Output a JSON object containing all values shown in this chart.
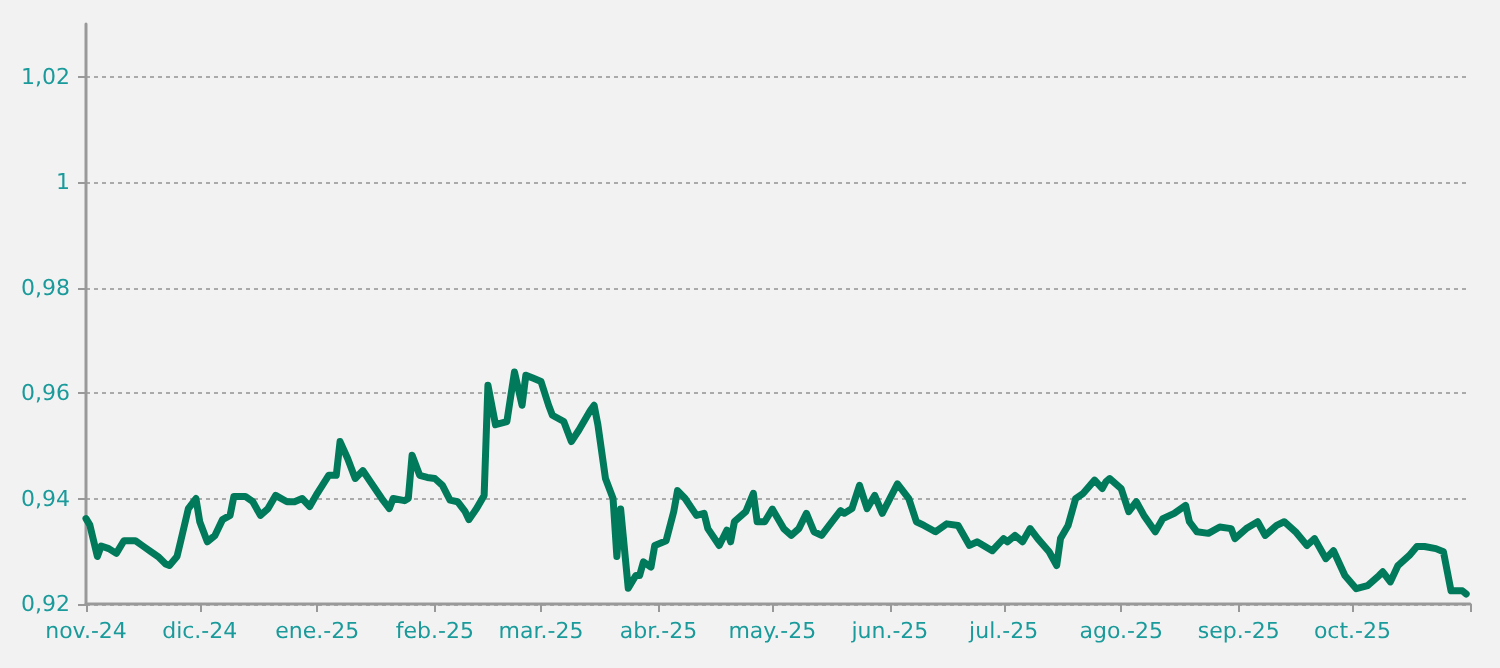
{
  "chart_data": {
    "type": "line",
    "x": [
      "2024-11-01",
      "2024-11-02",
      "2024-11-04",
      "2024-11-05",
      "2024-11-07",
      "2024-11-09",
      "2024-11-11",
      "2024-11-14",
      "2024-11-16",
      "2024-11-18",
      "2024-11-20",
      "2024-11-22",
      "2024-11-23",
      "2024-11-25",
      "2024-11-26",
      "2024-11-28",
      "2024-11-30",
      "2024-12-01",
      "2024-12-03",
      "2024-12-05",
      "2024-12-07",
      "2024-12-09",
      "2024-12-10",
      "2024-12-13",
      "2024-12-15",
      "2024-12-17",
      "2024-12-19",
      "2024-12-21",
      "2024-12-24",
      "2024-12-26",
      "2024-12-28",
      "2024-12-30",
      "2025-01-01",
      "2025-01-04",
      "2025-01-06",
      "2025-01-07",
      "2025-01-09",
      "2025-01-11",
      "2025-01-13",
      "2025-01-15",
      "2025-01-18",
      "2025-01-20",
      "2025-01-21",
      "2025-01-24",
      "2025-01-25",
      "2025-01-26",
      "2025-01-28",
      "2025-01-30",
      "2025-02-01",
      "2025-02-03",
      "2025-02-05",
      "2025-02-07",
      "2025-02-09",
      "2025-02-10",
      "2025-02-12",
      "2025-02-14",
      "2025-02-15",
      "2025-02-17",
      "2025-02-20",
      "2025-02-22",
      "2025-02-24",
      "2025-02-25",
      "2025-02-27",
      "2025-03-01",
      "2025-03-03",
      "2025-03-04",
      "2025-03-07",
      "2025-03-09",
      "2025-03-11",
      "2025-03-14",
      "2025-03-15",
      "2025-03-16",
      "2025-03-18",
      "2025-03-20",
      "2025-03-21",
      "2025-03-22",
      "2025-03-24",
      "2025-03-26",
      "2025-03-27",
      "2025-03-28",
      "2025-03-30",
      "2025-03-31",
      "2025-04-03",
      "2025-04-05",
      "2025-04-06",
      "2025-04-08",
      "2025-04-11",
      "2025-04-13",
      "2025-04-14",
      "2025-04-17",
      "2025-04-19",
      "2025-04-20",
      "2025-04-21",
      "2025-04-24",
      "2025-04-26",
      "2025-04-27",
      "2025-04-29",
      "2025-05-01",
      "2025-05-04",
      "2025-05-06",
      "2025-05-08",
      "2025-05-10",
      "2025-05-12",
      "2025-05-14",
      "2025-05-16",
      "2025-05-19",
      "2025-05-20",
      "2025-05-22",
      "2025-05-24",
      "2025-05-26",
      "2025-05-28",
      "2025-05-30",
      "2025-06-01",
      "2025-06-03",
      "2025-06-06",
      "2025-06-08",
      "2025-06-10",
      "2025-06-13",
      "2025-06-16",
      "2025-06-19",
      "2025-06-22",
      "2025-06-24",
      "2025-06-28",
      "2025-07-01",
      "2025-07-02",
      "2025-07-04",
      "2025-07-06",
      "2025-07-08",
      "2025-07-10",
      "2025-07-13",
      "2025-07-15",
      "2025-07-16",
      "2025-07-18",
      "2025-07-20",
      "2025-07-22",
      "2025-07-25",
      "2025-07-27",
      "2025-07-28",
      "2025-07-29",
      "2025-08-01",
      "2025-08-03",
      "2025-08-05",
      "2025-08-07",
      "2025-08-10",
      "2025-08-12",
      "2025-08-15",
      "2025-08-18",
      "2025-08-19",
      "2025-08-21",
      "2025-08-24",
      "2025-08-27",
      "2025-08-30",
      "2025-08-31",
      "2025-09-03",
      "2025-09-06",
      "2025-09-08",
      "2025-09-11",
      "2025-09-13",
      "2025-09-16",
      "2025-09-19",
      "2025-09-21",
      "2025-09-24",
      "2025-09-26",
      "2025-09-29",
      "2025-10-02",
      "2025-10-05",
      "2025-10-08",
      "2025-10-09",
      "2025-10-11",
      "2025-10-13",
      "2025-10-16",
      "2025-10-18",
      "2025-10-20",
      "2025-10-23",
      "2025-10-25",
      "2025-10-27",
      "2025-10-30",
      "2025-10-31"
    ],
    "series": [
      {
        "color": "#007a5a",
        "values": [
          0.9362,
          0.935,
          0.929,
          0.931,
          0.9305,
          0.9296,
          0.932,
          0.932,
          0.931,
          0.93,
          0.929,
          0.9276,
          0.9273,
          0.929,
          0.932,
          0.9381,
          0.94,
          0.9356,
          0.9318,
          0.933,
          0.936,
          0.9368,
          0.9404,
          0.9404,
          0.9394,
          0.9368,
          0.9381,
          0.9406,
          0.9394,
          0.9394,
          0.94,
          0.9385,
          0.941,
          0.9444,
          0.9444,
          0.9508,
          0.9476,
          0.9438,
          0.9453,
          0.9432,
          0.94,
          0.9381,
          0.94,
          0.9396,
          0.94,
          0.9482,
          0.9444,
          0.944,
          0.9438,
          0.9425,
          0.9397,
          0.9394,
          0.9375,
          0.936,
          0.9381,
          0.9406,
          0.9615,
          0.954,
          0.9546,
          0.964,
          0.9577,
          0.9634,
          0.9628,
          0.9622,
          0.9577,
          0.9558,
          0.9546,
          0.9508,
          0.953,
          0.9567,
          0.9577,
          0.954,
          0.9438,
          0.94,
          0.929,
          0.938,
          0.923,
          0.9254,
          0.9254,
          0.928,
          0.927,
          0.9311,
          0.932,
          0.9375,
          0.9415,
          0.94,
          0.9368,
          0.9372,
          0.9343,
          0.9311,
          0.934,
          0.9318,
          0.9356,
          0.9375,
          0.941,
          0.9356,
          0.9356,
          0.938,
          0.9343,
          0.933,
          0.9343,
          0.9372,
          0.9337,
          0.933,
          0.9349,
          0.9377,
          0.9372,
          0.9381,
          0.9425,
          0.9381,
          0.9406,
          0.9372,
          0.94,
          0.9428,
          0.94,
          0.9356,
          0.9349,
          0.9337,
          0.9352,
          0.9349,
          0.9311,
          0.9318,
          0.9301,
          0.9324,
          0.9318,
          0.933,
          0.9318,
          0.9343,
          0.9324,
          0.9299,
          0.9273,
          0.9324,
          0.9349,
          0.94,
          0.941,
          0.9435,
          0.9419,
          0.9432,
          0.9438,
          0.9419,
          0.9375,
          0.9394,
          0.9368,
          0.9337,
          0.9362,
          0.9372,
          0.9387,
          0.9356,
          0.9337,
          0.9334,
          0.9346,
          0.9343,
          0.9324,
          0.9343,
          0.9356,
          0.933,
          0.9349,
          0.9356,
          0.9337,
          0.9311,
          0.9324,
          0.9286,
          0.9301,
          0.9254,
          0.9229,
          0.9235,
          0.9254,
          0.9261,
          0.9242,
          0.9273,
          0.9292,
          0.9309,
          0.9309,
          0.9305,
          0.9299,
          0.9225,
          0.9225,
          0.9219
        ]
      }
    ],
    "xlim": [
      "2024-11-01",
      "2025-11-01"
    ],
    "xticks": [
      {
        "value": "2024-11-01",
        "label": "nov.-24"
      },
      {
        "value": "2024-12-01",
        "label": "dic.-24"
      },
      {
        "value": "2025-01-01",
        "label": "ene.-25"
      },
      {
        "value": "2025-02-01",
        "label": "feb.-25"
      },
      {
        "value": "2025-03-01",
        "label": "mar.-25"
      },
      {
        "value": "2025-04-01",
        "label": "abr.-25"
      },
      {
        "value": "2025-05-01",
        "label": "may.-25"
      },
      {
        "value": "2025-06-01",
        "label": "jun.-25"
      },
      {
        "value": "2025-07-01",
        "label": "jul.-25"
      },
      {
        "value": "2025-08-01",
        "label": "ago.-25"
      },
      {
        "value": "2025-09-01",
        "label": "sep.-25"
      },
      {
        "value": "2025-10-01",
        "label": "oct.-25"
      },
      {
        "value": "2025-11-01",
        "label": null
      }
    ],
    "ylim": [
      0.92,
      1.03
    ],
    "yticks": [
      {
        "value": 0.92,
        "label": "0,92"
      },
      {
        "value": 0.94,
        "label": "0,94"
      },
      {
        "value": 0.96,
        "label": "0,96"
      },
      {
        "value": 0.98,
        "label": "0,98"
      },
      1,
      {
        "value": 1.02,
        "label": "1,02"
      }
    ],
    "grid": "y",
    "marker": "none",
    "line_style": "solid"
  }
}
